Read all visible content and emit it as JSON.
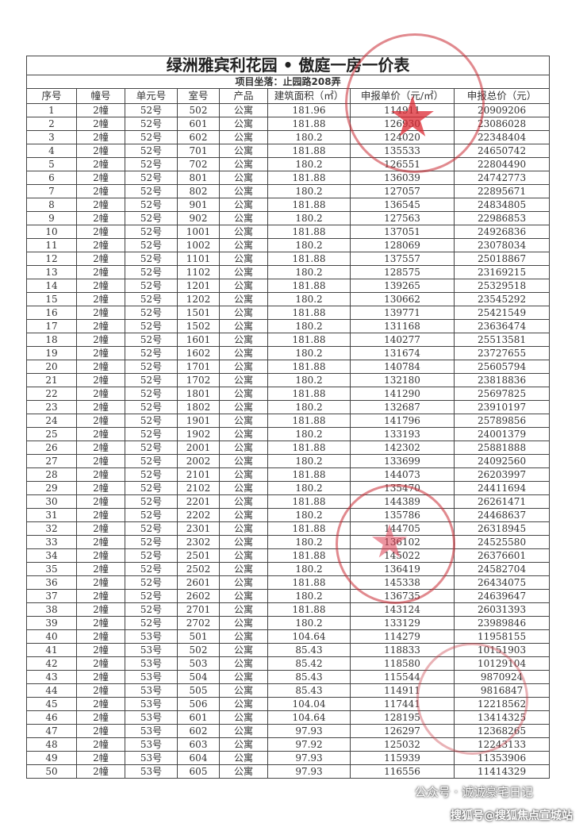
{
  "title": "绿洲雅宾利花园 • 傲庭一房一价表",
  "subtitle": "项目坐落：止园路208弄",
  "columns": [
    "序号",
    "幢号",
    "单元号",
    "室号",
    "产品",
    "建筑面积（㎡）",
    "申报单价（元/㎡）",
    "申报总价（元）"
  ],
  "rows": [
    [
      "1",
      "2幢",
      "52号",
      "502",
      "公寓",
      "181.96",
      "114911",
      "20909206"
    ],
    [
      "2",
      "2幢",
      "52号",
      "601",
      "公寓",
      "181.88",
      "126930",
      "23086028"
    ],
    [
      "3",
      "2幢",
      "52号",
      "602",
      "公寓",
      "180.2",
      "124020",
      "22348404"
    ],
    [
      "4",
      "2幢",
      "52号",
      "701",
      "公寓",
      "181.88",
      "135533",
      "24650742"
    ],
    [
      "5",
      "2幢",
      "52号",
      "702",
      "公寓",
      "180.2",
      "126551",
      "22804490"
    ],
    [
      "6",
      "2幢",
      "52号",
      "801",
      "公寓",
      "181.88",
      "136039",
      "24742773"
    ],
    [
      "7",
      "2幢",
      "52号",
      "802",
      "公寓",
      "180.2",
      "127057",
      "22895671"
    ],
    [
      "8",
      "2幢",
      "52号",
      "901",
      "公寓",
      "181.88",
      "136545",
      "24834805"
    ],
    [
      "9",
      "2幢",
      "52号",
      "902",
      "公寓",
      "180.2",
      "127563",
      "22986853"
    ],
    [
      "10",
      "2幢",
      "52号",
      "1001",
      "公寓",
      "181.88",
      "137051",
      "24926836"
    ],
    [
      "11",
      "2幢",
      "52号",
      "1002",
      "公寓",
      "180.2",
      "128069",
      "23078034"
    ],
    [
      "12",
      "2幢",
      "52号",
      "1101",
      "公寓",
      "181.88",
      "137557",
      "25018867"
    ],
    [
      "13",
      "2幢",
      "52号",
      "1102",
      "公寓",
      "180.2",
      "128575",
      "23169215"
    ],
    [
      "14",
      "2幢",
      "52号",
      "1201",
      "公寓",
      "181.88",
      "139265",
      "25329518"
    ],
    [
      "15",
      "2幢",
      "52号",
      "1202",
      "公寓",
      "180.2",
      "130662",
      "23545292"
    ],
    [
      "16",
      "2幢",
      "52号",
      "1501",
      "公寓",
      "181.88",
      "139771",
      "25421549"
    ],
    [
      "17",
      "2幢",
      "52号",
      "1502",
      "公寓",
      "180.2",
      "131168",
      "23636474"
    ],
    [
      "18",
      "2幢",
      "52号",
      "1601",
      "公寓",
      "181.88",
      "140277",
      "25513581"
    ],
    [
      "19",
      "2幢",
      "52号",
      "1602",
      "公寓",
      "180.2",
      "131674",
      "23727655"
    ],
    [
      "20",
      "2幢",
      "52号",
      "1701",
      "公寓",
      "181.88",
      "140784",
      "25605794"
    ],
    [
      "21",
      "2幢",
      "52号",
      "1702",
      "公寓",
      "180.2",
      "132180",
      "23818836"
    ],
    [
      "22",
      "2幢",
      "52号",
      "1801",
      "公寓",
      "181.88",
      "141290",
      "25697825"
    ],
    [
      "23",
      "2幢",
      "52号",
      "1802",
      "公寓",
      "180.2",
      "132687",
      "23910197"
    ],
    [
      "24",
      "2幢",
      "52号",
      "1901",
      "公寓",
      "181.88",
      "141796",
      "25789856"
    ],
    [
      "25",
      "2幢",
      "52号",
      "1902",
      "公寓",
      "180.2",
      "133193",
      "24001379"
    ],
    [
      "26",
      "2幢",
      "52号",
      "2001",
      "公寓",
      "181.88",
      "142302",
      "25881888"
    ],
    [
      "27",
      "2幢",
      "52号",
      "2002",
      "公寓",
      "180.2",
      "133699",
      "24092560"
    ],
    [
      "28",
      "2幢",
      "52号",
      "2101",
      "公寓",
      "181.88",
      "144073",
      "26203997"
    ],
    [
      "29",
      "2幢",
      "52号",
      "2102",
      "公寓",
      "180.2",
      "135470",
      "24411694"
    ],
    [
      "30",
      "2幢",
      "52号",
      "2201",
      "公寓",
      "181.88",
      "144389",
      "26261471"
    ],
    [
      "31",
      "2幢",
      "52号",
      "2202",
      "公寓",
      "180.2",
      "135786",
      "24468637"
    ],
    [
      "32",
      "2幢",
      "52号",
      "2301",
      "公寓",
      "181.88",
      "144705",
      "26318945"
    ],
    [
      "33",
      "2幢",
      "52号",
      "2302",
      "公寓",
      "180.2",
      "136102",
      "24525580"
    ],
    [
      "34",
      "2幢",
      "52号",
      "2501",
      "公寓",
      "181.88",
      "145022",
      "26376601"
    ],
    [
      "35",
      "2幢",
      "52号",
      "2502",
      "公寓",
      "180.2",
      "136419",
      "24582704"
    ],
    [
      "36",
      "2幢",
      "52号",
      "2601",
      "公寓",
      "181.88",
      "145338",
      "26434075"
    ],
    [
      "37",
      "2幢",
      "52号",
      "2602",
      "公寓",
      "180.2",
      "136735",
      "24639647"
    ],
    [
      "38",
      "2幢",
      "52号",
      "2701",
      "公寓",
      "181.88",
      "143124",
      "26031393"
    ],
    [
      "39",
      "2幢",
      "52号",
      "2702",
      "公寓",
      "180.2",
      "133129",
      "23989846"
    ],
    [
      "40",
      "2幢",
      "53号",
      "501",
      "公寓",
      "104.64",
      "114279",
      "11958155"
    ],
    [
      "41",
      "2幢",
      "53号",
      "502",
      "公寓",
      "85.43",
      "118833",
      "10151903"
    ],
    [
      "42",
      "2幢",
      "53号",
      "503",
      "公寓",
      "85.42",
      "118580",
      "10129104"
    ],
    [
      "43",
      "2幢",
      "53号",
      "504",
      "公寓",
      "85.43",
      "115544",
      "9870924"
    ],
    [
      "44",
      "2幢",
      "53号",
      "505",
      "公寓",
      "85.43",
      "114911",
      "9816847"
    ],
    [
      "45",
      "2幢",
      "53号",
      "506",
      "公寓",
      "104.04",
      "117441",
      "12218562"
    ],
    [
      "46",
      "2幢",
      "53号",
      "601",
      "公寓",
      "104.64",
      "128195",
      "13414325"
    ],
    [
      "47",
      "2幢",
      "53号",
      "602",
      "公寓",
      "97.93",
      "126297",
      "12368265"
    ],
    [
      "48",
      "2幢",
      "53号",
      "603",
      "公寓",
      "97.92",
      "125032",
      "12243133"
    ],
    [
      "49",
      "2幢",
      "53号",
      "604",
      "公寓",
      "97.93",
      "115939",
      "11353906"
    ],
    [
      "50",
      "2幢",
      "53号",
      "605",
      "公寓",
      "97.93",
      "116556",
      "11414329"
    ]
  ],
  "watermark": {
    "wechat": "公众号 · 诚诚豪宅日记",
    "sohu": "搜狐号@搜狐焦点宣城站"
  },
  "colors": {
    "stamp": "#c82832",
    "grid": "#444444"
  }
}
